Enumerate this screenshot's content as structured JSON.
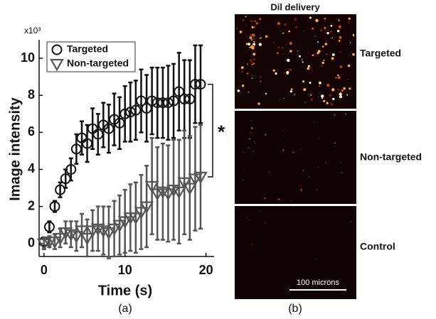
{
  "chart_data": {
    "type": "scatter",
    "y_multiplier": "x10³",
    "ylabel": "Image intensity",
    "xlabel": "Time (s)",
    "panel_label": "(a)",
    "xlim": [
      -0.6,
      21
    ],
    "ylim": [
      -0.7,
      11
    ],
    "xticks": [
      0,
      10,
      20
    ],
    "yticks": [
      0,
      2,
      4,
      6,
      8,
      10
    ],
    "legend": "upper left",
    "annotation": "*",
    "x": [
      0,
      0.67,
      1.33,
      2,
      2.67,
      3.33,
      4,
      4.67,
      5.33,
      6,
      6.67,
      7.33,
      8,
      8.67,
      9.33,
      10,
      10.67,
      11.33,
      12,
      12.67,
      13.33,
      14,
      14.67,
      15.33,
      16,
      16.67,
      17.33,
      18,
      18.67,
      19.33
    ],
    "series": [
      {
        "name": "Targeted",
        "color": "#111111",
        "marker": "circle",
        "values": [
          0.1,
          0.9,
          2.0,
          2.9,
          3.5,
          4.0,
          5.1,
          5.7,
          5.4,
          6.2,
          5.9,
          6.4,
          6.2,
          6.7,
          6.5,
          7.0,
          7.1,
          7.2,
          7.7,
          7.3,
          7.7,
          7.6,
          7.6,
          7.6,
          7.7,
          8.2,
          7.8,
          7.8,
          8.6,
          8.6
        ],
        "errors": [
          0.2,
          0.3,
          0.3,
          0.4,
          0.5,
          0.6,
          0.8,
          0.9,
          1.0,
          1.1,
          1.1,
          1.2,
          1.3,
          1.4,
          1.4,
          1.5,
          1.6,
          1.6,
          1.7,
          1.8,
          1.8,
          1.9,
          1.9,
          2.0,
          2.0,
          2.1,
          2.1,
          2.1,
          2.1,
          2.1
        ]
      },
      {
        "name": "Non-targeted",
        "color": "#555555",
        "marker": "triangle-down",
        "values": [
          0.0,
          0.1,
          0.1,
          0.3,
          0.6,
          0.5,
          0.4,
          0.7,
          0.3,
          0.7,
          0.8,
          0.7,
          0.6,
          0.8,
          1.0,
          1.2,
          1.4,
          1.4,
          1.7,
          2.0,
          3.1,
          2.7,
          2.8,
          2.7,
          2.9,
          2.8,
          3.3,
          3.0,
          3.5,
          3.6
        ],
        "errors": [
          0.3,
          0.3,
          0.4,
          0.5,
          0.6,
          0.7,
          0.8,
          0.9,
          1.0,
          1.1,
          1.2,
          1.3,
          1.4,
          1.5,
          1.6,
          1.7,
          1.8,
          1.9,
          2.0,
          2.2,
          2.6,
          2.5,
          2.6,
          2.6,
          2.7,
          2.8,
          2.8,
          2.8,
          2.8,
          2.8
        ]
      }
    ]
  },
  "image_panel": {
    "title": "Dil delivery",
    "panel_label": "(b)",
    "rows": [
      "Targeted",
      "Non-targeted",
      "Control"
    ],
    "scale_bar": "100 microns"
  }
}
